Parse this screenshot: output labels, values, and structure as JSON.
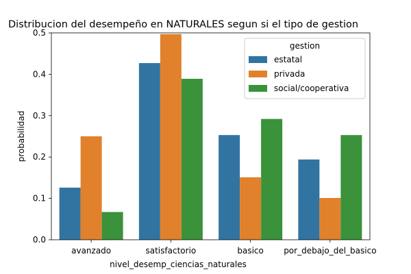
{
  "chart_data": {
    "type": "bar",
    "title": "Distribucion del desempeño en NATURALES segun si el tipo de gestion",
    "xlabel": "nivel_desemp_ciencias_naturales",
    "ylabel": "probabilidad",
    "ylim": [
      0,
      0.5
    ],
    "yticks": [
      "0.0",
      "0.1",
      "0.2",
      "0.3",
      "0.4",
      "0.5"
    ],
    "categories": [
      "avanzado",
      "satisfactorio",
      "basico",
      "por_debajo_del_basico"
    ],
    "series": [
      {
        "name": "estatal",
        "color": "#3274a1",
        "values": [
          0.126,
          0.427,
          0.253,
          0.194
        ]
      },
      {
        "name": "privada",
        "color": "#e1812c",
        "values": [
          0.25,
          0.497,
          0.151,
          0.101
        ]
      },
      {
        "name": "social/cooperativa",
        "color": "#3a923a",
        "values": [
          0.067,
          0.389,
          0.292,
          0.253
        ]
      }
    ],
    "legend": {
      "title": "gestion",
      "placement": "top-right"
    },
    "grid": false
  }
}
